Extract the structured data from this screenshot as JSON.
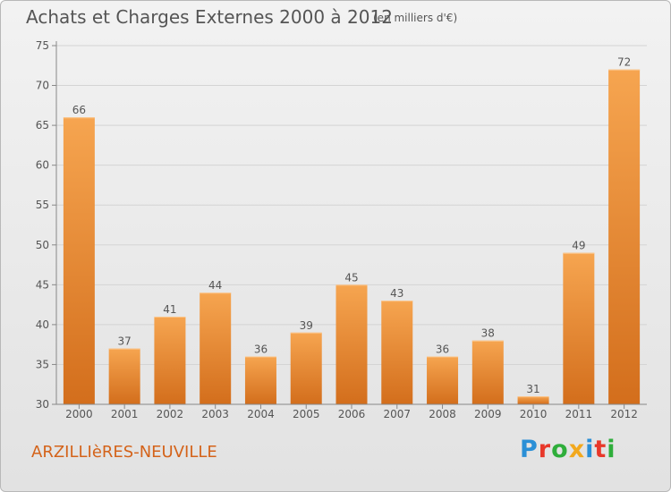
{
  "header": {
    "title": "Achats et Charges Externes 2000 à 2012",
    "unit": "(en milliers d'€)"
  },
  "footer": {
    "commune": "ARZILLIèRES-NEUVILLE",
    "logo_text": "Proxiti",
    "logo_colors": [
      "#2a8fd6",
      "#e8382a",
      "#2fae3b",
      "#f2a81d",
      "#2a8fd6",
      "#e8382a",
      "#2fae3b"
    ]
  },
  "colors": {
    "bar_top": "#f6a550",
    "bar_bottom": "#d36e1c",
    "axis_text": "#555555",
    "grid": "#d4d4d4",
    "commune": "#d4631a"
  },
  "chart_data": {
    "type": "bar",
    "categories": [
      "2000",
      "2001",
      "2002",
      "2003",
      "2004",
      "2005",
      "2006",
      "2007",
      "2008",
      "2009",
      "2010",
      "2011",
      "2012"
    ],
    "values": [
      66,
      37,
      41,
      44,
      36,
      39,
      45,
      43,
      36,
      38,
      31,
      49,
      72
    ],
    "title": "Achats et Charges Externes 2000 à 2012",
    "ylim": [
      30,
      75
    ],
    "yticks": [
      30,
      35,
      40,
      45,
      50,
      55,
      60,
      65,
      70,
      75
    ],
    "grid": true,
    "data_labels": true
  }
}
